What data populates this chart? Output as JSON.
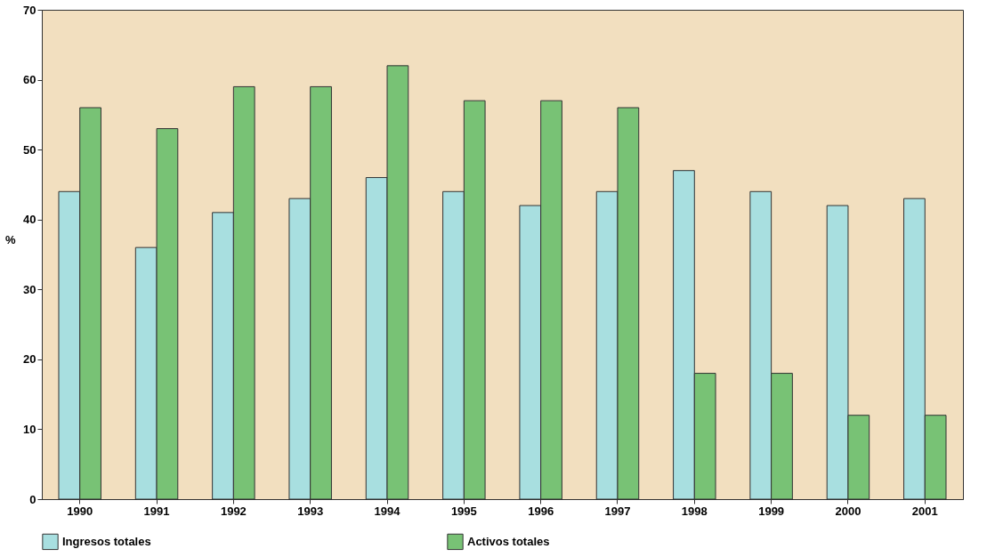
{
  "chart_data": {
    "type": "bar",
    "ylabel": "%",
    "categories": [
      "1990",
      "1991",
      "1992",
      "1993",
      "1994",
      "1995",
      "1996",
      "1997",
      "1998",
      "1999",
      "2000",
      "2001"
    ],
    "series": [
      {
        "name": "Ingresos totales",
        "color": "#a8dfe0",
        "values": [
          44,
          36,
          41,
          43,
          46,
          44,
          42,
          44,
          47,
          44,
          42,
          43
        ]
      },
      {
        "name": "Activos totales",
        "color": "#78c275",
        "values": [
          56,
          53,
          59,
          59,
          62,
          57,
          57,
          56,
          18,
          18,
          12,
          12
        ]
      }
    ],
    "ylim": [
      0,
      70
    ],
    "yticks": [
      0,
      10,
      20,
      30,
      40,
      50,
      60,
      70
    ],
    "grid": false,
    "legend": "bottom"
  }
}
